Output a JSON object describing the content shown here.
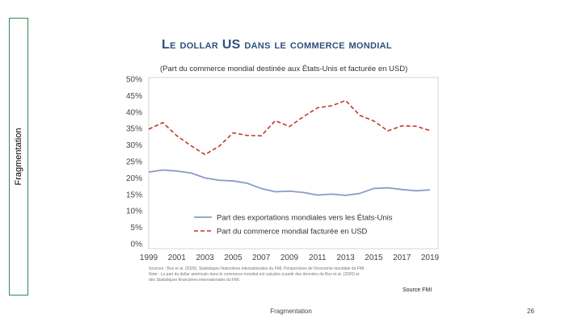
{
  "sidebar": {
    "label": "Fragmentation"
  },
  "footer": {
    "text": "Fragmentation",
    "page_number": "26"
  },
  "notes": {
    "line1": "Sources : Boz et al. (2020), Statistiques financières internationales du FMI, Perspectives de l'économie mondiale du FMI.",
    "line2": "Note : La part du dollar américain dans le commerce mondial est calculée à partir des données de Boz et al. (2020) et",
    "line3": "des Statistiques financières internationales du FMI."
  },
  "source": "Source FMI",
  "colors": {
    "series1": "#8b9bc8",
    "series2": "#c0392b",
    "title": "#2f4f80"
  },
  "chart_data": {
    "type": "line",
    "title": "Le dollar US dans le commerce mondial",
    "subtitle": "(Part du commerce mondial destinée aux États-Unis et facturée en USD)",
    "xlabel": "",
    "ylabel": "",
    "x": [
      1999,
      2000,
      2001,
      2002,
      2003,
      2004,
      2005,
      2006,
      2007,
      2008,
      2009,
      2010,
      2011,
      2012,
      2013,
      2014,
      2015,
      2016,
      2017,
      2018,
      2019
    ],
    "xlim": [
      1999,
      2019
    ],
    "ylim": [
      0,
      50
    ],
    "x_ticks": [
      "1999",
      "2001",
      "2003",
      "2005",
      "2007",
      "2009",
      "2011",
      "2013",
      "2015",
      "2017",
      "2019"
    ],
    "y_ticks": [
      "0%",
      "5%",
      "10%",
      "15%",
      "20%",
      "25%",
      "30%",
      "35%",
      "40%",
      "45%",
      "50%"
    ],
    "grid": false,
    "legend_position": "bottom-center",
    "series": [
      {
        "name": "Part des exportations mondiales vers les États-Unis",
        "style": "solid",
        "values": [
          21.8,
          22.4,
          22.1,
          21.5,
          20.0,
          19.3,
          19.1,
          18.4,
          16.8,
          15.8,
          16.0,
          15.6,
          14.8,
          15.1,
          14.7,
          15.3,
          16.8,
          17.0,
          16.5,
          16.1,
          16.4
        ]
      },
      {
        "name": "Part du commerce mondial facturée en USD",
        "style": "dashed",
        "values": [
          34.8,
          36.8,
          32.8,
          29.8,
          27.1,
          29.6,
          33.7,
          32.9,
          32.8,
          37.4,
          35.6,
          38.6,
          41.3,
          41.9,
          43.5,
          39.0,
          37.3,
          34.3,
          35.8,
          35.7,
          34.4
        ]
      }
    ]
  }
}
